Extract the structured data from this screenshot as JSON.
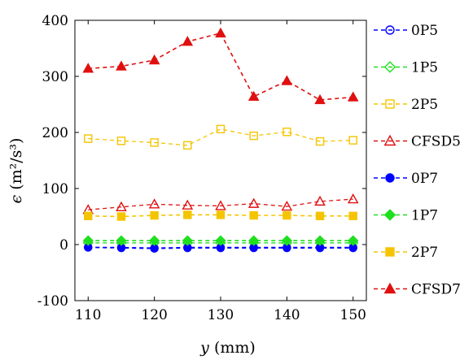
{
  "chart_data": {
    "type": "line",
    "xlabel_var": "y",
    "xlabel_unit": "(mm)",
    "ylabel_var": "ϵ",
    "ylabel_unit": "(m²/s³)",
    "xlim": [
      108,
      152
    ],
    "ylim": [
      -100,
      400
    ],
    "xticks": [
      110,
      120,
      130,
      140,
      150
    ],
    "yticks": [
      -100,
      0,
      100,
      200,
      300,
      400
    ],
    "x": [
      110,
      115,
      120,
      125,
      130,
      135,
      140,
      145,
      150
    ],
    "legend_position": "right",
    "series": [
      {
        "name": "0P5",
        "color": "#0000ff",
        "marker": "circle",
        "filled": false,
        "values": [
          -5,
          -5,
          -6,
          -5,
          -5,
          -5,
          -5,
          -5,
          -5
        ]
      },
      {
        "name": "1P5",
        "color": "#1fdf1f",
        "marker": "diamond",
        "filled": false,
        "values": [
          3,
          3,
          3,
          3,
          3,
          3,
          3,
          3,
          3
        ]
      },
      {
        "name": "2P5",
        "color": "#f5c400",
        "marker": "square",
        "filled": false,
        "values": [
          189,
          185,
          182,
          177,
          206,
          194,
          201,
          184,
          186
        ]
      },
      {
        "name": "CFSD5",
        "color": "#e01010",
        "marker": "triangle",
        "filled": false,
        "values": [
          62,
          67,
          72,
          70,
          69,
          73,
          68,
          77,
          81
        ]
      },
      {
        "name": "0P7",
        "color": "#0000ff",
        "marker": "circle",
        "filled": true,
        "values": [
          -5,
          -6,
          -7,
          -6,
          -6,
          -6,
          -6,
          -6,
          -6
        ]
      },
      {
        "name": "1P7",
        "color": "#1fdf1f",
        "marker": "diamond",
        "filled": true,
        "values": [
          7,
          7,
          7,
          7,
          7,
          7,
          7,
          7,
          7
        ]
      },
      {
        "name": "2P7",
        "color": "#f5c400",
        "marker": "square",
        "filled": true,
        "values": [
          51,
          50,
          52,
          53,
          53,
          52,
          52,
          51,
          51
        ]
      },
      {
        "name": "CFSD7",
        "color": "#e01010",
        "marker": "triangle",
        "filled": true,
        "values": [
          314,
          318,
          329,
          362,
          377,
          264,
          292,
          258,
          263
        ]
      }
    ]
  }
}
